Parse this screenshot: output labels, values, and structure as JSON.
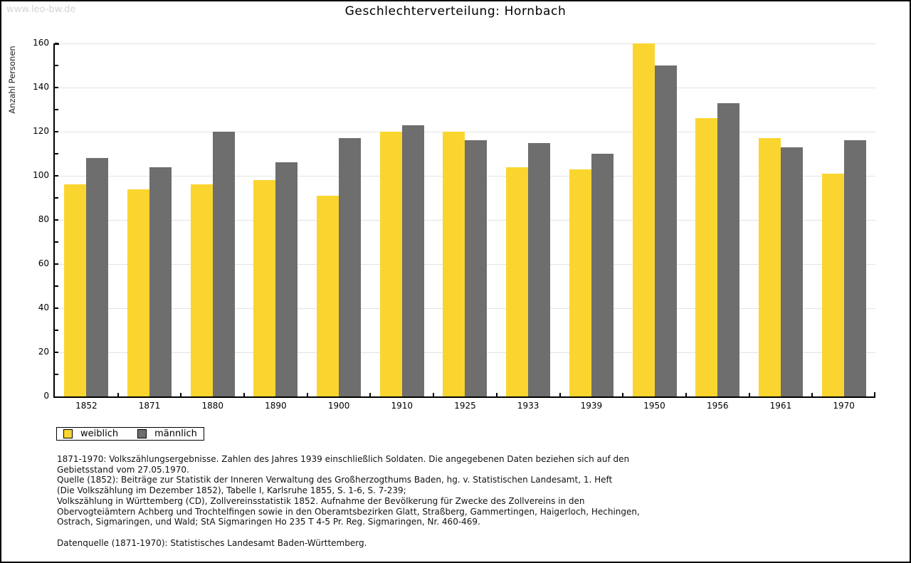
{
  "page": {
    "watermark": "www.leo-bw.de",
    "title": "Geschlechterverteilung: Hornbach"
  },
  "chart_data": {
    "type": "bar",
    "title": "Geschlechterverteilung: Hornbach",
    "xlabel": "",
    "ylabel": "Anzahl Personen",
    "ylim": [
      0,
      160
    ],
    "ytick_step": 20,
    "yminor_step": 10,
    "grid": "horizontal",
    "legend_position": "bottom-left",
    "categories": [
      "1852",
      "1871",
      "1880",
      "1890",
      "1900",
      "1910",
      "1925",
      "1933",
      "1939",
      "1950",
      "1956",
      "1961",
      "1970"
    ],
    "series": [
      {
        "name": "weiblich",
        "color": "#FBD52F",
        "values": [
          96,
          94,
          96,
          98,
          91,
          120,
          120,
          104,
          103,
          160,
          126,
          117,
          101
        ]
      },
      {
        "name": "männlich",
        "color": "#6E6E6E",
        "values": [
          108,
          104,
          120,
          106,
          117,
          123,
          116,
          115,
          110,
          150,
          133,
          113,
          116
        ]
      }
    ]
  },
  "legend": {
    "items": [
      {
        "label": "weiblich",
        "color": "#FBD52F"
      },
      {
        "label": "männlich",
        "color": "#6E6E6E"
      }
    ]
  },
  "footnote": {
    "lines": [
      "1871-1970: Volkszählungsergebnisse. Zahlen des Jahres 1939 einschließlich Soldaten. Die angegebenen Daten beziehen sich auf den",
      "Gebietsstand vom 27.05.1970.",
      "Quelle (1852): Beiträge zur Statistik der Inneren Verwaltung des Großherzogthums Baden, hg. v. Statistischen Landesamt, 1. Heft",
      "(Die Volkszählung im Dezember 1852), Tabelle I, Karlsruhe 1855, S. 1-6, S. 7-239;",
      "Volkszählung in Württemberg (CD), Zollvereinsstatistik 1852. Aufnahme der Bevölkerung für Zwecke des Zollvereins in den",
      "Obervogteiämtern Achberg und Trochtelfingen sowie in den Oberamtsbezirken Glatt, Straßberg, Gammertingen, Haigerloch, Hechingen,",
      "Ostrach, Sigmaringen, und Wald; StA Sigmaringen Ho 235 T 4-5 Pr. Reg. Sigmaringen, Nr. 460-469."
    ],
    "datasource": "Datenquelle (1871-1970): Statistisches Landesamt Baden-Württemberg."
  },
  "colors": {
    "bar_weiblich": "#FBD52F",
    "bar_maennlich": "#6E6E6E",
    "gridline": "#E3E3E3",
    "axis": "#000000",
    "watermark": "#D4D4D4",
    "frame_shadow": "#A6A6A6"
  }
}
